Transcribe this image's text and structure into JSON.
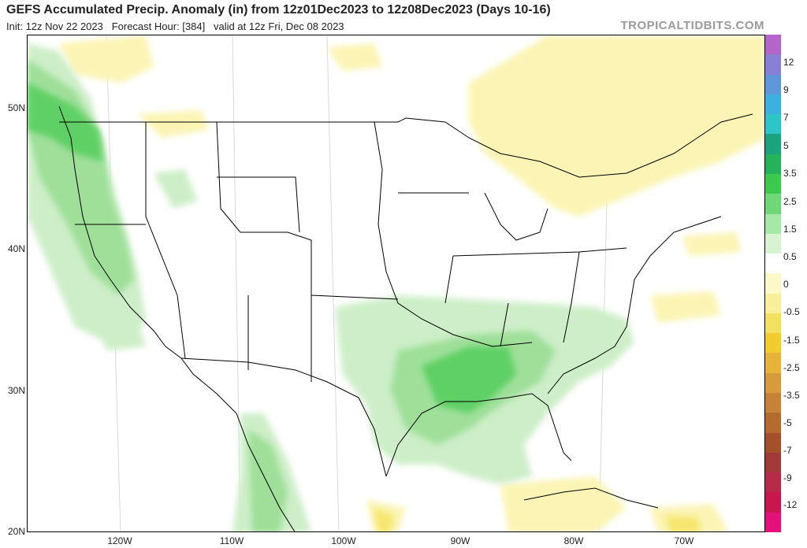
{
  "header": {
    "title": "GEFS Accumulated Precip. Anomaly (in) from 12z01Dec2023 to 12z08Dec2023 (Days 10-16)",
    "init": "Init: 12z Nov 22 2023",
    "forecast_hour": "Forecast Hour: [384]",
    "valid": "valid at 12z Fri, Dec 08 2023",
    "brand": "TROPICALTIDBITS.COM"
  },
  "axes": {
    "lat_labels": [
      "50N",
      "40N",
      "30N",
      "20N"
    ],
    "lon_labels": [
      "120W",
      "110W",
      "100W",
      "90W",
      "80W",
      "70W"
    ]
  },
  "colorbar": {
    "labels": [
      "12",
      "9",
      "7",
      "5",
      "3.5",
      "2.5",
      "1.5",
      "0.5",
      "0",
      "-0.5",
      "-1.5",
      "-2.5",
      "-3.5",
      "-5",
      "-7",
      "-9",
      "-12"
    ],
    "colors": [
      "#b565c9",
      "#8a7fd6",
      "#5f97da",
      "#3cb0df",
      "#2fc4c7",
      "#1aa37c",
      "#26b25a",
      "#3cc94e",
      "#6fd777",
      "#a6e8a6",
      "#d7f3d2",
      "#ffffff",
      "#fdf8c7",
      "#f9ee9a",
      "#f4e05f",
      "#f0cc2e",
      "#e8b33a",
      "#d79a3d",
      "#c78138",
      "#b56a30",
      "#a64f2c",
      "#a23a3a",
      "#b72a4a",
      "#c9164f",
      "#e6107a"
    ]
  }
}
